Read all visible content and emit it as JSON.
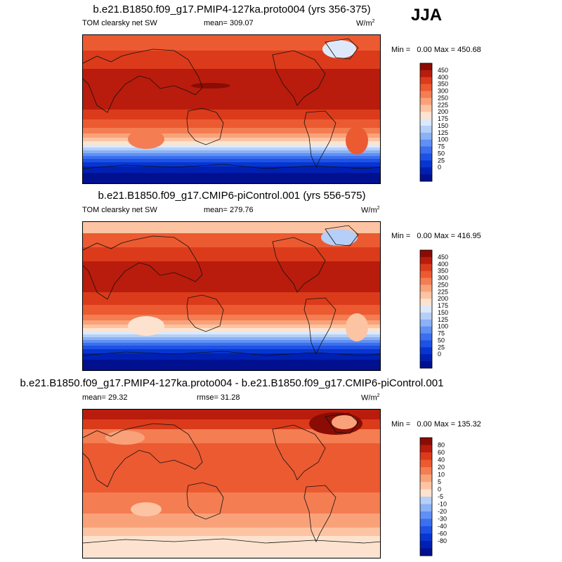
{
  "season": "JJA",
  "palette": {
    "0": "#00108f",
    "1": "#0020b4",
    "2": "#0735d1",
    "3": "#1e52e6",
    "4": "#3b6fef",
    "5": "#6090f3",
    "6": "#8bb1f6",
    "7": "#b5cff8",
    "8": "#dde9fb",
    "9": "#fde3cf",
    "10": "#fcc4a3",
    "11": "#f9a27a",
    "12": "#f47d52",
    "13": "#ec5a31",
    "14": "#db3b1b",
    "15": "#b91c0c",
    "16": "#8a0c04"
  },
  "panels": [
    {
      "title": "b.e21.B1850.f09_g17.PMIP4-127ka.proto004 (yrs 356-375)",
      "left_label": "TOM clearsky net SW",
      "center_label": "mean= 309.07",
      "units_main": "W/m",
      "units_sup": "2",
      "minmax": "Min =   0.00 Max = 450.68",
      "levels": [
        "450",
        "400",
        "350",
        "300",
        "250",
        "225",
        "200",
        "175",
        "150",
        "125",
        "100",
        "75",
        "50",
        "25",
        "0"
      ],
      "chart_data": {
        "type": "heatmap",
        "title": "b.e21.B1850.f09_g17.PMIP4-127ka.proto004 (yrs 356-375)",
        "variable": "TOM clearsky net SW",
        "units": "W/m2",
        "mean": 309.07,
        "min": 0.0,
        "max": 450.68,
        "contour_levels": [
          0,
          25,
          50,
          75,
          100,
          125,
          150,
          175,
          200,
          225,
          250,
          300,
          350,
          400,
          450
        ],
        "approx_zonal_profile": {
          "lat": [
            90,
            75,
            60,
            45,
            30,
            15,
            0,
            -15,
            -30,
            -45,
            -60,
            -75,
            -90
          ],
          "value": [
            320,
            360,
            370,
            390,
            410,
            405,
            380,
            345,
            270,
            160,
            50,
            0,
            0
          ]
        }
      }
    },
    {
      "title": "b.e21.B1850.f09_g17.CMIP6-piControl.001 (yrs 556-575)",
      "left_label": "TOM clearsky net SW",
      "center_label": "mean= 279.76",
      "units_main": "W/m",
      "units_sup": "2",
      "minmax": "Min =   0.00 Max = 416.95",
      "levels": [
        "450",
        "400",
        "350",
        "300",
        "250",
        "225",
        "200",
        "175",
        "150",
        "125",
        "100",
        "75",
        "50",
        "25",
        "0"
      ],
      "chart_data": {
        "type": "heatmap",
        "title": "b.e21.B1850.f09_g17.CMIP6-piControl.001 (yrs 556-575)",
        "variable": "TOM clearsky net SW",
        "units": "W/m2",
        "mean": 279.76,
        "min": 0.0,
        "max": 416.95,
        "contour_levels": [
          0,
          25,
          50,
          75,
          100,
          125,
          150,
          175,
          200,
          225,
          250,
          300,
          350,
          400,
          450
        ],
        "approx_zonal_profile": {
          "lat": [
            90,
            75,
            60,
            45,
            30,
            15,
            0,
            -15,
            -30,
            -45,
            -60,
            -75,
            -90
          ],
          "value": [
            200,
            300,
            330,
            360,
            375,
            385,
            370,
            340,
            275,
            175,
            60,
            0,
            0
          ]
        }
      }
    },
    {
      "title": "b.e21.B1850.f09_g17.PMIP4-127ka.proto004 - b.e21.B1850.f09_g17.CMIP6-piControl.001",
      "left_label": "mean=  29.32",
      "center_label": "rmse=  31.28",
      "units_main": "W/m",
      "units_sup": "2",
      "minmax": "Min =   0.00 Max = 135.32",
      "levels": [
        "80",
        "60",
        "40",
        "20",
        "10",
        "5",
        "0",
        "-5",
        "-10",
        "-20",
        "-30",
        "-40",
        "-60",
        "-80"
      ],
      "chart_data": {
        "type": "heatmap",
        "title": "b.e21.B1850.f09_g17.PMIP4-127ka.proto004 - b.e21.B1850.f09_g17.CMIP6-piControl.001",
        "units": "W/m2",
        "mean": 29.32,
        "rmse": 31.28,
        "min": 0.0,
        "max": 135.32,
        "contour_levels": [
          -80,
          -60,
          -40,
          -30,
          -20,
          -10,
          -5,
          0,
          5,
          10,
          20,
          40,
          60,
          80
        ],
        "approx_zonal_profile": {
          "lat": [
            90,
            75,
            60,
            45,
            30,
            15,
            0,
            -15,
            -30,
            -45,
            -60,
            -75,
            -90
          ],
          "value": [
            120,
            70,
            50,
            40,
            40,
            30,
            20,
            20,
            15,
            10,
            5,
            0,
            0
          ]
        }
      }
    }
  ]
}
